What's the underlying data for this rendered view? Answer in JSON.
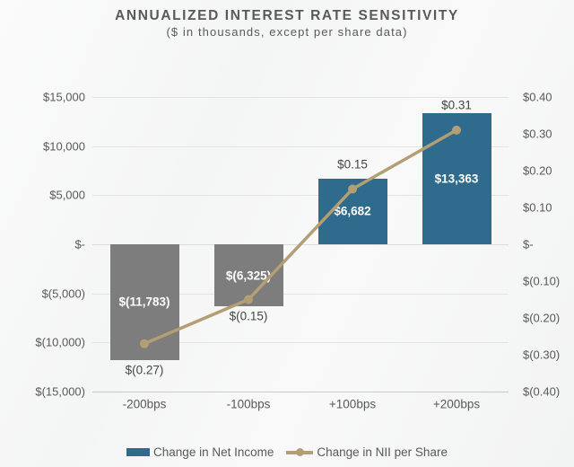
{
  "chart_data": {
    "type": "combo-bar-line",
    "title": "ANNUALIZED INTEREST RATE SENSITIVITY",
    "subtitle": "($ in thousands, except per share data)",
    "categories": [
      "-200bps",
      "-100bps",
      "+100bps",
      "+200bps"
    ],
    "series": [
      {
        "name": "Change in Net Income",
        "type": "bar",
        "axis": "left",
        "values": [
          -11783,
          -6325,
          6682,
          13363
        ],
        "labels": [
          "$(11,783)",
          "$(6,325)",
          "$6,682",
          "$13,363"
        ],
        "color_positive": "#2e6b8c",
        "color_negative": "#7d7d7d"
      },
      {
        "name": "Change in NII per Share",
        "type": "line",
        "axis": "right",
        "values": [
          -0.27,
          -0.15,
          0.15,
          0.31
        ],
        "labels": [
          "$(0.27)",
          "$(0.15)",
          "$0.15",
          "$0.31"
        ],
        "color": "#b49e74"
      }
    ],
    "left_axis": {
      "min": -15000,
      "max": 15000,
      "step": 5000,
      "ticks": [
        "$15,000",
        "$10,000",
        "$5,000",
        "$-",
        "$(5,000)",
        "$(10,000)",
        "$(15,000)"
      ]
    },
    "right_axis": {
      "min": -0.4,
      "max": 0.4,
      "step": 0.1,
      "ticks": [
        "$0.40",
        "$0.30",
        "$0.20",
        "$0.10",
        "$-",
        "$(0.10)",
        "$(0.20)",
        "$(0.30)",
        "$(0.40)"
      ]
    },
    "grid": true,
    "legend_position": "bottom",
    "colors": {
      "text": "#595959",
      "gridline": "#e4e4e4",
      "axis_line": "#c9c9c9",
      "bar_value_label": "#ffffff"
    }
  }
}
